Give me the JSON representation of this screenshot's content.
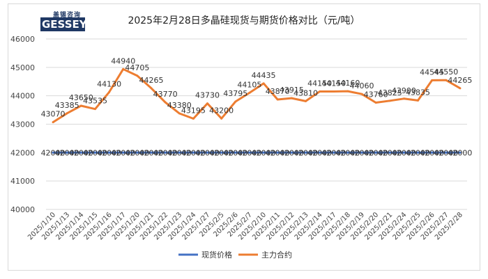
{
  "logo": {
    "sub_text": "盖锡咨询",
    "brand": "GESSEY",
    "initial": "G"
  },
  "chart_data": {
    "type": "line",
    "title": "2025年2月28日多晶硅现货与期货价格对比（元/吨）",
    "categories": [
      "2025/1/10",
      "2025/1/13",
      "2025/1/14",
      "2025/1/15",
      "2025/1/16",
      "2025/1/17",
      "2025/1/20",
      "2025/1/21",
      "2025/1/22",
      "2025/1/23",
      "2025/1/24",
      "2025/1/27",
      "2025/2/5",
      "2025/2/6",
      "2025/2/7",
      "2025/2/10",
      "2025/2/11",
      "2025/2/12",
      "2025/2/13",
      "2025/2/14",
      "2025/2/17",
      "2025/2/18",
      "2025/2/19",
      "2025/2/20",
      "2025/2/21",
      "2025/2/24",
      "2025/2/25",
      "2025/2/26",
      "2025/2/27",
      "2025/2/28"
    ],
    "ylim": [
      40000,
      46000
    ],
    "yticks": [
      40000,
      41000,
      42000,
      43000,
      44000,
      45000,
      46000
    ],
    "grid": true,
    "legend_position": "bottom",
    "series": [
      {
        "name": "现货价格",
        "color": "#4472c4",
        "values": [
          42000,
          42000,
          42000,
          42000,
          42000,
          42000,
          42000,
          42000,
          42000,
          42000,
          42000,
          42000,
          42000,
          42000,
          42000,
          42000,
          42000,
          42000,
          42000,
          42000,
          42000,
          42000,
          42000,
          42000,
          42000,
          42000,
          42000,
          42000,
          42000,
          42000
        ],
        "labels": [
          "42000",
          "42000",
          "42000",
          "42000",
          "42000",
          "42000",
          "42000",
          "42000",
          "42000",
          "42000",
          "42000",
          "42000",
          "42000",
          "42000",
          "42000",
          "42000",
          "42000",
          "42000",
          "42000",
          "42000",
          "42000",
          "42000",
          "42000",
          "42000",
          "42000",
          "42000",
          "42000",
          "42000",
          "42000",
          "42000"
        ]
      },
      {
        "name": "主力合约",
        "color": "#ed7d31",
        "values": [
          43070,
          43385,
          43650,
          43535,
          44130,
          44940,
          44705,
          44265,
          43770,
          43380,
          43195,
          43730,
          43200,
          43795,
          44105,
          44435,
          43870,
          43915,
          43810,
          44150,
          44150,
          44160,
          44060,
          43760,
          43825,
          43900,
          43835,
          44545,
          44550,
          44265
        ],
        "labels": [
          "43070",
          "43385",
          "43650",
          "43535",
          "44130",
          "44940",
          "44705",
          "44265",
          "43770",
          "43380",
          "43195",
          "43730",
          "43200",
          "43795",
          "44105",
          "44435",
          "43870",
          "43915",
          "43810",
          "44150",
          "44150",
          "44160",
          "44060",
          "43760",
          "43825",
          "43900",
          "43835",
          "44545",
          "44550",
          "44265"
        ]
      }
    ]
  }
}
